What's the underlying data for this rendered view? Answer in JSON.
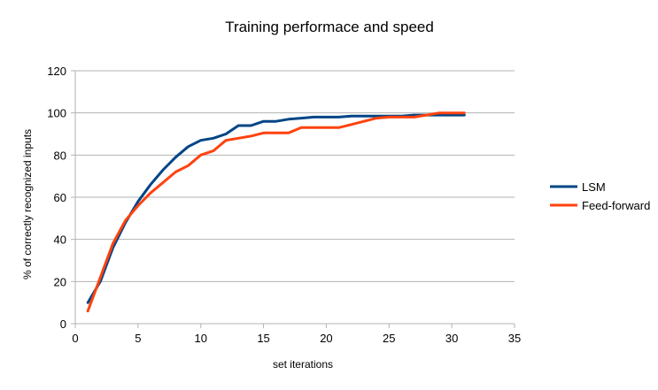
{
  "chart_data": {
    "type": "line",
    "title": "Training performace and speed",
    "xlabel": "set iterations",
    "ylabel": "% of correctly recognized inputs",
    "xlim": [
      0,
      35
    ],
    "ylim": [
      0,
      120
    ],
    "xticks": [
      0,
      5,
      10,
      15,
      20,
      25,
      30,
      35
    ],
    "yticks": [
      0,
      20,
      40,
      60,
      80,
      100,
      120
    ],
    "grid": "horizontal",
    "legend_position": "right",
    "series": [
      {
        "name": "LSM",
        "color": "#004586",
        "points": [
          [
            1,
            10
          ],
          [
            2,
            20
          ],
          [
            3,
            36
          ],
          [
            4,
            48
          ],
          [
            5,
            58
          ],
          [
            6,
            66
          ],
          [
            7,
            73
          ],
          [
            8,
            79
          ],
          [
            9,
            84
          ],
          [
            10,
            87
          ],
          [
            11,
            88
          ],
          [
            12,
            90
          ],
          [
            13,
            94
          ],
          [
            14,
            94
          ],
          [
            15,
            96
          ],
          [
            16,
            96
          ],
          [
            17,
            97
          ],
          [
            18,
            97.5
          ],
          [
            19,
            98
          ],
          [
            20,
            98
          ],
          [
            21,
            98
          ],
          [
            22,
            98.5
          ],
          [
            23,
            98.5
          ],
          [
            24,
            98.5
          ],
          [
            25,
            98.5
          ],
          [
            26,
            98.5
          ],
          [
            27,
            99
          ],
          [
            28,
            99
          ],
          [
            29,
            99
          ],
          [
            30,
            99
          ],
          [
            31,
            99
          ]
        ]
      },
      {
        "name": "Feed-forward",
        "color": "#ff420e",
        "points": [
          [
            1,
            6
          ],
          [
            1.5,
            14
          ],
          [
            2,
            22
          ],
          [
            3,
            38
          ],
          [
            4,
            49
          ],
          [
            5,
            56
          ],
          [
            6,
            62
          ],
          [
            7,
            67
          ],
          [
            8,
            72
          ],
          [
            9,
            75
          ],
          [
            10,
            80
          ],
          [
            11,
            82
          ],
          [
            12,
            87
          ],
          [
            13,
            88
          ],
          [
            14,
            89
          ],
          [
            15,
            90.5
          ],
          [
            16,
            90.5
          ],
          [
            17,
            90.5
          ],
          [
            18,
            93
          ],
          [
            19,
            93
          ],
          [
            20,
            93
          ],
          [
            21,
            93
          ],
          [
            22,
            94.5
          ],
          [
            23,
            96
          ],
          [
            24,
            97.5
          ],
          [
            25,
            98
          ],
          [
            26,
            98
          ],
          [
            27,
            98
          ],
          [
            28,
            99
          ],
          [
            29,
            100
          ],
          [
            30,
            100
          ],
          [
            31,
            100
          ]
        ]
      }
    ]
  }
}
